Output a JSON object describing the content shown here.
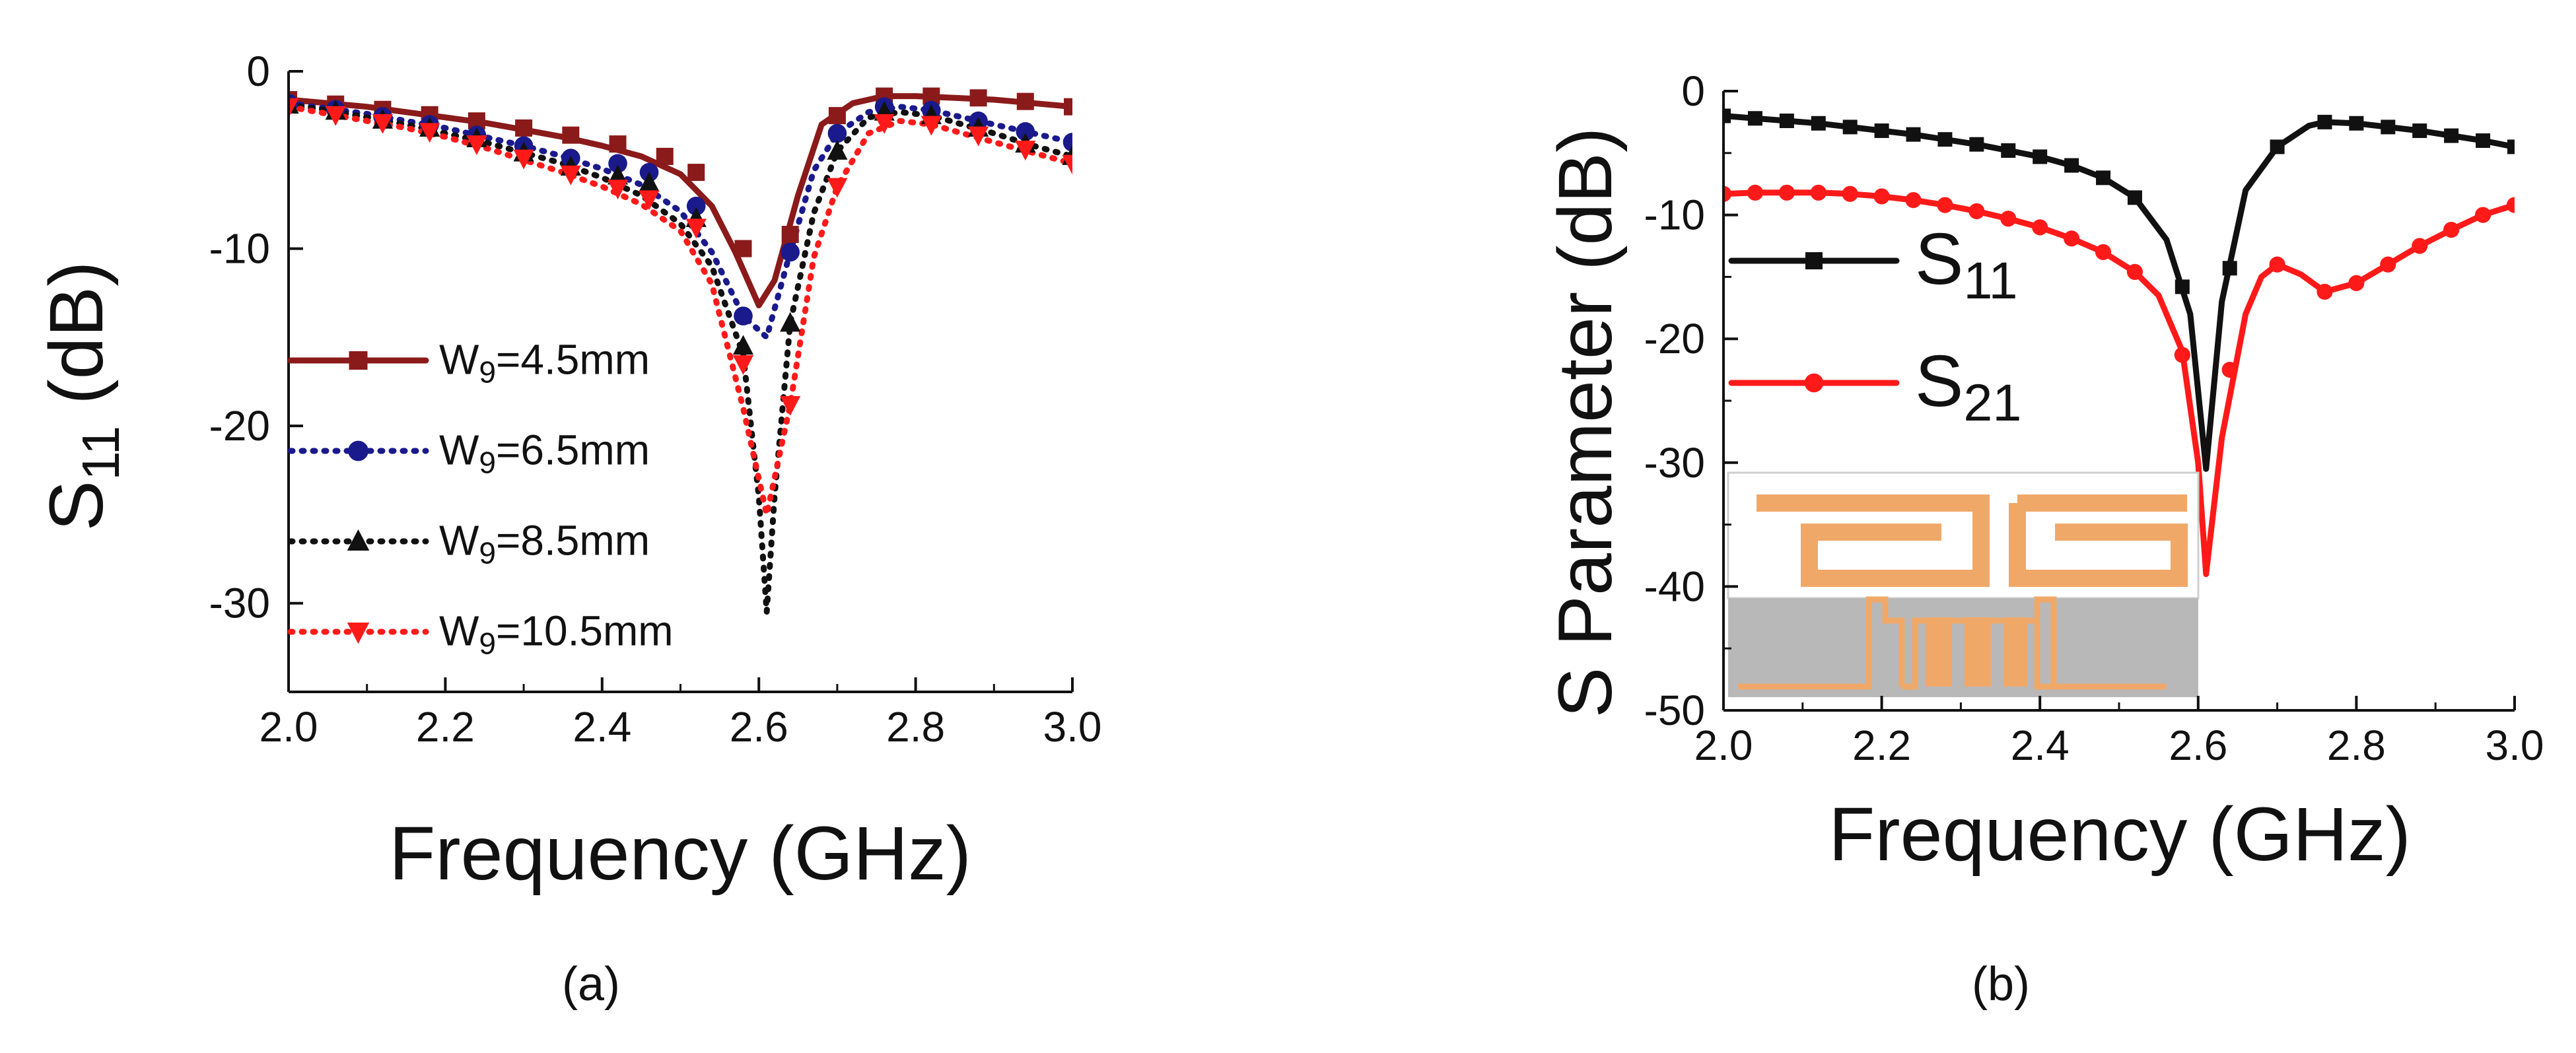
{
  "chart_data": [
    {
      "type": "line",
      "panel_label": "(a)",
      "title": "",
      "xlabel": "Frequency (GHz)",
      "ylabel": {
        "main": "S",
        "sub": "11",
        "unit": " (dB)"
      },
      "xlim": [
        2.0,
        3.0
      ],
      "ylim": [
        -35,
        0
      ],
      "xticks": [
        {
          "value": 2.0,
          "label": "2.0"
        },
        {
          "value": 2.2,
          "label": "2.2"
        },
        {
          "value": 2.4,
          "label": "2.4"
        },
        {
          "value": 2.6,
          "label": "2.6"
        },
        {
          "value": 2.8,
          "label": "2.8"
        },
        {
          "value": 3.0,
          "label": "3.0"
        }
      ],
      "yticks": [
        {
          "value": 0,
          "label": "0"
        },
        {
          "value": -10,
          "label": "-10"
        },
        {
          "value": -20,
          "label": "-20"
        },
        {
          "value": -30,
          "label": "-30"
        }
      ],
      "legend_position": "lower-left",
      "series": [
        {
          "name": "W9=4.5mm",
          "name_main": "W",
          "name_sub": "9",
          "name_rest": "=4.5mm",
          "color": "#8b1a1a",
          "line": "solid",
          "marker": "square",
          "x": [
            2.0,
            2.05,
            2.1,
            2.15,
            2.2,
            2.25,
            2.3,
            2.35,
            2.4,
            2.45,
            2.5,
            2.54,
            2.57,
            2.6,
            2.62,
            2.65,
            2.68,
            2.72,
            2.76,
            2.8,
            2.85,
            2.9,
            2.95,
            3.0
          ],
          "y": [
            -1.6,
            -1.8,
            -2.0,
            -2.3,
            -2.6,
            -2.9,
            -3.3,
            -3.7,
            -4.2,
            -4.8,
            -5.8,
            -7.6,
            -10.2,
            -13.2,
            -11.8,
            -7.0,
            -3.0,
            -1.8,
            -1.4,
            -1.4,
            -1.5,
            -1.6,
            -1.8,
            -2.0
          ],
          "mx": [
            2.0,
            2.06,
            2.12,
            2.18,
            2.24,
            2.3,
            2.36,
            2.42,
            2.48,
            2.52,
            2.58,
            2.64,
            2.7,
            2.76,
            2.82,
            2.88,
            2.94,
            3.0
          ],
          "my": [
            -1.6,
            -1.85,
            -2.15,
            -2.45,
            -2.8,
            -3.2,
            -3.6,
            -4.1,
            -4.8,
            -5.7,
            -10.0,
            -9.2,
            -2.5,
            -1.4,
            -1.4,
            -1.5,
            -1.7,
            -2.0
          ]
        },
        {
          "name": "W9=6.5mm",
          "name_main": "W",
          "name_sub": "9",
          "name_rest": "=6.5mm",
          "color": "#1a1a8c",
          "line": "dotted",
          "marker": "circle",
          "x": [
            2.0,
            2.05,
            2.1,
            2.15,
            2.2,
            2.25,
            2.3,
            2.35,
            2.4,
            2.45,
            2.5,
            2.54,
            2.58,
            2.61,
            2.64,
            2.67,
            2.7,
            2.74,
            2.78,
            2.82,
            2.86,
            2.9,
            2.95,
            3.0
          ],
          "y": [
            -1.8,
            -2.1,
            -2.4,
            -2.8,
            -3.2,
            -3.7,
            -4.2,
            -4.8,
            -5.5,
            -6.4,
            -7.9,
            -10.2,
            -13.8,
            -15.0,
            -10.2,
            -5.6,
            -3.5,
            -2.3,
            -2.0,
            -2.2,
            -2.6,
            -3.0,
            -3.5,
            -4.0
          ],
          "mx": [
            2.0,
            2.06,
            2.12,
            2.18,
            2.24,
            2.3,
            2.36,
            2.42,
            2.46,
            2.52,
            2.58,
            2.64,
            2.7,
            2.76,
            2.82,
            2.88,
            2.94,
            3.0
          ],
          "my": [
            -1.8,
            -2.15,
            -2.55,
            -3.0,
            -3.6,
            -4.2,
            -4.9,
            -5.2,
            -5.7,
            -7.6,
            -13.8,
            -10.2,
            -3.5,
            -2.0,
            -2.2,
            -2.8,
            -3.4,
            -4.0
          ]
        },
        {
          "name": "W9=8.5mm",
          "name_main": "W",
          "name_sub": "9",
          "name_rest": "=8.5mm",
          "color": "#111111",
          "line": "dotted",
          "marker": "triangle-up",
          "x": [
            2.0,
            2.05,
            2.1,
            2.15,
            2.2,
            2.25,
            2.3,
            2.35,
            2.4,
            2.45,
            2.5,
            2.54,
            2.58,
            2.6,
            2.61,
            2.62,
            2.64,
            2.67,
            2.7,
            2.74,
            2.78,
            2.82,
            2.86,
            2.9,
            2.95,
            3.0
          ],
          "y": [
            -1.9,
            -2.2,
            -2.6,
            -3.0,
            -3.5,
            -4.0,
            -4.6,
            -5.2,
            -6.0,
            -7.0,
            -8.6,
            -11.0,
            -16.0,
            -24.0,
            -30.5,
            -24.0,
            -14.2,
            -8.0,
            -4.5,
            -2.6,
            -2.3,
            -2.5,
            -3.0,
            -3.5,
            -4.2,
            -4.8
          ],
          "mx": [
            2.0,
            2.06,
            2.12,
            2.18,
            2.24,
            2.3,
            2.36,
            2.42,
            2.46,
            2.52,
            2.58,
            2.64,
            2.7,
            2.76,
            2.82,
            2.88,
            2.94,
            3.0
          ],
          "my": [
            -1.9,
            -2.25,
            -2.75,
            -3.2,
            -3.8,
            -4.6,
            -5.4,
            -5.9,
            -6.3,
            -8.3,
            -15.5,
            -14.2,
            -4.5,
            -2.3,
            -2.5,
            -3.2,
            -4.1,
            -4.8
          ]
        },
        {
          "name": "W9=10.5mm",
          "name_main": "W",
          "name_sub": "9",
          "name_rest": "=10.5mm",
          "color": "#ff1a1a",
          "line": "dotted",
          "marker": "triangle-down",
          "x": [
            2.0,
            2.05,
            2.1,
            2.15,
            2.2,
            2.25,
            2.3,
            2.35,
            2.4,
            2.45,
            2.5,
            2.54,
            2.58,
            2.61,
            2.64,
            2.67,
            2.7,
            2.74,
            2.78,
            2.82,
            2.86,
            2.9,
            2.95,
            3.0
          ],
          "y": [
            -2.0,
            -2.4,
            -2.8,
            -3.2,
            -3.7,
            -4.3,
            -5.0,
            -5.7,
            -6.5,
            -7.5,
            -9.0,
            -12.0,
            -19.0,
            -25.0,
            -18.8,
            -10.5,
            -6.5,
            -3.5,
            -2.8,
            -3.0,
            -3.5,
            -4.0,
            -4.6,
            -5.2
          ],
          "mx": [
            2.0,
            2.06,
            2.12,
            2.18,
            2.24,
            2.3,
            2.36,
            2.42,
            2.46,
            2.52,
            2.58,
            2.64,
            2.7,
            2.76,
            2.82,
            2.88,
            2.94,
            3.0
          ],
          "my": [
            -2.0,
            -2.45,
            -2.9,
            -3.4,
            -4.1,
            -4.9,
            -5.8,
            -6.6,
            -7.2,
            -8.8,
            -16.5,
            -18.8,
            -6.5,
            -2.9,
            -3.0,
            -3.6,
            -4.4,
            -5.2
          ]
        }
      ]
    },
    {
      "type": "line",
      "panel_label": "(b)",
      "title": "",
      "xlabel": "Frequency (GHz)",
      "ylabel": {
        "main": "S Parameter (dB)"
      },
      "xlim": [
        2.0,
        3.0
      ],
      "ylim": [
        -50,
        0
      ],
      "xticks": [
        {
          "value": 2.0,
          "label": "2.0"
        },
        {
          "value": 2.2,
          "label": "2.2"
        },
        {
          "value": 2.4,
          "label": "2.4"
        },
        {
          "value": 2.6,
          "label": "2.6"
        },
        {
          "value": 2.8,
          "label": "2.8"
        },
        {
          "value": 3.0,
          "label": "3.0"
        }
      ],
      "yticks": [
        {
          "value": 0,
          "label": "0"
        },
        {
          "value": -10,
          "label": "-10"
        },
        {
          "value": -20,
          "label": "-20"
        },
        {
          "value": -30,
          "label": "-30"
        },
        {
          "value": -40,
          "label": "-40"
        },
        {
          "value": -50,
          "label": "-50"
        }
      ],
      "legend_position": "center-left",
      "inset": "antenna-layout",
      "series": [
        {
          "name": "S11",
          "name_main": "S",
          "name_sub": "11",
          "name_rest": "",
          "color": "#111111",
          "line": "solid",
          "marker": "square",
          "x": [
            2.0,
            2.04,
            2.08,
            2.12,
            2.16,
            2.2,
            2.24,
            2.28,
            2.32,
            2.36,
            2.4,
            2.44,
            2.48,
            2.52,
            2.56,
            2.59,
            2.61,
            2.63,
            2.66,
            2.7,
            2.74,
            2.76,
            2.8,
            2.84,
            2.88,
            2.92,
            2.96,
            3.0
          ],
          "y": [
            -2.0,
            -2.2,
            -2.4,
            -2.6,
            -2.9,
            -3.2,
            -3.5,
            -3.9,
            -4.3,
            -4.8,
            -5.3,
            -6.0,
            -7.0,
            -8.6,
            -12.0,
            -18.0,
            -30.5,
            -17.0,
            -8.0,
            -4.5,
            -2.8,
            -2.5,
            -2.6,
            -2.9,
            -3.2,
            -3.6,
            -4.0,
            -4.5
          ],
          "mx": [
            2.0,
            2.04,
            2.08,
            2.12,
            2.16,
            2.2,
            2.24,
            2.28,
            2.32,
            2.36,
            2.4,
            2.44,
            2.48,
            2.52,
            2.58,
            2.64,
            2.7,
            2.76,
            2.8,
            2.84,
            2.88,
            2.92,
            2.96,
            3.0
          ],
          "my": [
            -2.0,
            -2.2,
            -2.4,
            -2.6,
            -2.9,
            -3.2,
            -3.5,
            -3.9,
            -4.3,
            -4.8,
            -5.3,
            -6.0,
            -7.0,
            -8.6,
            -15.8,
            -14.3,
            -4.5,
            -2.5,
            -2.6,
            -2.9,
            -3.2,
            -3.6,
            -4.0,
            -4.5
          ]
        },
        {
          "name": "S21",
          "name_main": "S",
          "name_sub": "21",
          "name_rest": "",
          "color": "#ff1a1a",
          "line": "solid",
          "marker": "circle",
          "x": [
            2.0,
            2.04,
            2.08,
            2.12,
            2.16,
            2.2,
            2.24,
            2.28,
            2.32,
            2.36,
            2.4,
            2.44,
            2.48,
            2.52,
            2.55,
            2.58,
            2.6,
            2.61,
            2.63,
            2.66,
            2.68,
            2.7,
            2.73,
            2.76,
            2.8,
            2.84,
            2.88,
            2.92,
            2.96,
            3.0
          ],
          "y": [
            -8.3,
            -8.2,
            -8.2,
            -8.2,
            -8.3,
            -8.5,
            -8.8,
            -9.2,
            -9.7,
            -10.3,
            -11.0,
            -11.9,
            -13.0,
            -14.6,
            -16.5,
            -21.0,
            -30.0,
            -39.0,
            -28.0,
            -18.0,
            -15.0,
            -14.0,
            -14.8,
            -16.2,
            -15.5,
            -14.0,
            -12.5,
            -11.2,
            -10.0,
            -9.2
          ],
          "mx": [
            2.0,
            2.04,
            2.08,
            2.12,
            2.16,
            2.2,
            2.24,
            2.28,
            2.32,
            2.36,
            2.4,
            2.44,
            2.48,
            2.52,
            2.58,
            2.64,
            2.7,
            2.76,
            2.8,
            2.84,
            2.88,
            2.92,
            2.96,
            3.0
          ],
          "my": [
            -8.3,
            -8.2,
            -8.2,
            -8.2,
            -8.3,
            -8.5,
            -8.8,
            -9.2,
            -9.7,
            -10.3,
            -11.0,
            -11.9,
            -13.0,
            -14.6,
            -21.3,
            -22.5,
            -14.0,
            -16.2,
            -15.5,
            -14.0,
            -12.5,
            -11.2,
            -10.0,
            -9.2
          ]
        }
      ]
    }
  ]
}
